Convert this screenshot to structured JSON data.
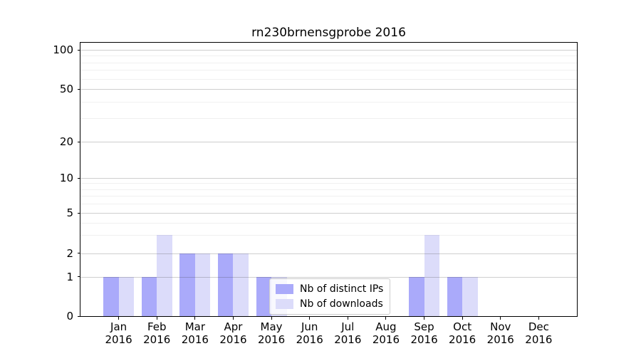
{
  "chart_data": {
    "type": "bar",
    "title": "rn230brnensgprobe 2016",
    "categories": [
      "Jan 2016",
      "Feb 2016",
      "Mar 2016",
      "Apr 2016",
      "May 2016",
      "Jun 2016",
      "Jul 2016",
      "Aug 2016",
      "Sep 2016",
      "Oct 2016",
      "Nov 2016",
      "Dec 2016"
    ],
    "series": [
      {
        "name": "Nb of distinct IPs",
        "color": "#aaaafa",
        "values": [
          1,
          1,
          2,
          2,
          1,
          0,
          0,
          0,
          1,
          1,
          0,
          0
        ]
      },
      {
        "name": "Nb of downloads",
        "color": "#dcdcfa",
        "values": [
          1,
          3,
          2,
          2,
          1,
          0,
          0,
          0,
          3,
          1,
          0,
          0
        ]
      }
    ],
    "y_scale": "symlog",
    "y_ticks": [
      0,
      1,
      2,
      5,
      10,
      20,
      50,
      100
    ],
    "y_minor_gridlines": [
      3,
      4,
      6,
      7,
      8,
      9,
      30,
      40,
      60,
      70,
      80,
      90
    ],
    "ylim": [
      0,
      112
    ],
    "grid": true,
    "grid_above_bars": true,
    "legend_position": "lower-center-inside",
    "background": "#ffffff",
    "axis_color": "#000000"
  }
}
